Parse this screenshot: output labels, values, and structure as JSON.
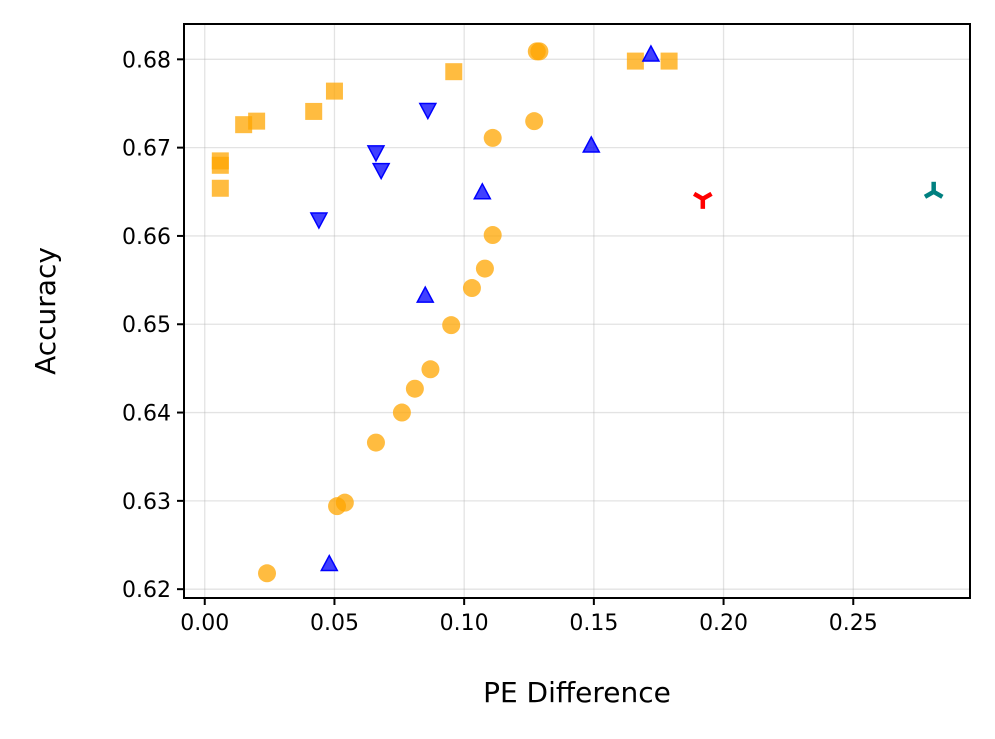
{
  "chart_data": {
    "type": "scatter",
    "title": "",
    "xlabel": "PE Difference",
    "ylabel": "Accuracy",
    "xlim": [
      -0.008,
      0.295
    ],
    "ylim": [
      0.619,
      0.684
    ],
    "xticks": [
      0.0,
      0.05,
      0.1,
      0.15,
      0.2,
      0.25
    ],
    "xtick_labels": [
      "0.00",
      "0.05",
      "0.10",
      "0.15",
      "0.20",
      "0.25"
    ],
    "yticks": [
      0.62,
      0.63,
      0.64,
      0.65,
      0.66,
      0.67,
      0.68
    ],
    "ytick_labels": [
      "0.62",
      "0.63",
      "0.64",
      "0.65",
      "0.66",
      "0.67",
      "0.68"
    ],
    "grid": true,
    "series": [
      {
        "name": "orange-circles",
        "marker": "circle",
        "color": "#ffa500",
        "points": [
          [
            0.024,
            0.6218
          ],
          [
            0.051,
            0.6294
          ],
          [
            0.054,
            0.6298
          ],
          [
            0.066,
            0.6366
          ],
          [
            0.076,
            0.64
          ],
          [
            0.081,
            0.6427
          ],
          [
            0.087,
            0.6449
          ],
          [
            0.095,
            0.6499
          ],
          [
            0.103,
            0.6541
          ],
          [
            0.108,
            0.6563
          ],
          [
            0.111,
            0.6601
          ],
          [
            0.111,
            0.6711
          ],
          [
            0.127,
            0.673
          ],
          [
            0.128,
            0.6809
          ],
          [
            0.129,
            0.6809
          ]
        ]
      },
      {
        "name": "orange-squares",
        "marker": "square",
        "color": "#ffa500",
        "points": [
          [
            0.006,
            0.6654
          ],
          [
            0.006,
            0.668
          ],
          [
            0.006,
            0.6685
          ],
          [
            0.015,
            0.6726
          ],
          [
            0.02,
            0.673
          ],
          [
            0.042,
            0.6741
          ],
          [
            0.05,
            0.6764
          ],
          [
            0.096,
            0.6786
          ],
          [
            0.166,
            0.6798
          ],
          [
            0.179,
            0.6798
          ]
        ]
      },
      {
        "name": "blue-triangles-down",
        "marker": "triangle-down",
        "color": "#0000ff",
        "points": [
          [
            0.044,
            0.6618
          ],
          [
            0.066,
            0.6694
          ],
          [
            0.068,
            0.6674
          ],
          [
            0.086,
            0.6742
          ]
        ]
      },
      {
        "name": "blue-triangles-up",
        "marker": "triangle-up",
        "color": "#0000ff",
        "points": [
          [
            0.048,
            0.6229
          ],
          [
            0.085,
            0.6533
          ],
          [
            0.107,
            0.665
          ],
          [
            0.149,
            0.6703
          ],
          [
            0.172,
            0.6806
          ]
        ]
      },
      {
        "name": "red-tri-down",
        "marker": "tri-down",
        "color": "#ff0000",
        "points": [
          [
            0.192,
            0.6642
          ]
        ]
      },
      {
        "name": "teal-tri-up",
        "marker": "tri-up",
        "color": "#008080",
        "points": [
          [
            0.281,
            0.665
          ]
        ]
      }
    ]
  }
}
